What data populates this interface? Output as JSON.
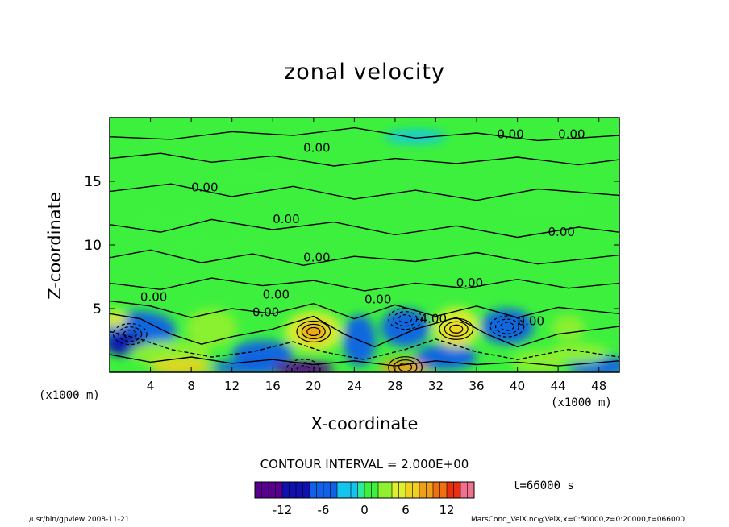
{
  "chart_data": {
    "type": "heatmap",
    "title": "zonal velocity",
    "xlabel": "X-coordinate",
    "ylabel": "Z-coordinate",
    "x_unit_left": "(x1000 m)",
    "x_unit_right": "(x1000 m)",
    "xlim": [
      0,
      50
    ],
    "ylim": [
      0,
      20
    ],
    "x_ticks": [
      "4",
      "8",
      "12",
      "16",
      "20",
      "24",
      "28",
      "32",
      "36",
      "40",
      "44",
      "48"
    ],
    "y_ticks": [
      "5",
      "10",
      "15"
    ],
    "contour_interval": "CONTOUR INTERVAL = 2.000E+00",
    "time": "t=66000 s",
    "colorbar": {
      "min": -16,
      "max": 16,
      "tick_labels": [
        "-12",
        "-6",
        "0",
        "6",
        "12"
      ],
      "tick_values": [
        -12,
        -6,
        0,
        6,
        12
      ]
    },
    "contour_labels": [
      "0.00",
      "0.00",
      "0.00",
      "0.00",
      "0.00",
      "0.00",
      "0.00",
      "0.00",
      "0.00",
      "0.00",
      "0.00",
      "0.00",
      "-4.00",
      "0.00"
    ],
    "extrema": [
      {
        "x": 20,
        "z": 3.2,
        "value": 10,
        "kind": "max"
      },
      {
        "x": 34,
        "z": 3.4,
        "value": 8,
        "kind": "max"
      },
      {
        "x": 29,
        "z": 0.4,
        "value": 12,
        "kind": "max"
      },
      {
        "x": 19,
        "z": 0.2,
        "value": -12,
        "kind": "min"
      },
      {
        "x": 2,
        "z": 3.0,
        "value": -8,
        "kind": "min"
      },
      {
        "x": 39,
        "z": 3.6,
        "value": -4,
        "kind": "min"
      },
      {
        "x": 29,
        "z": 4.2,
        "value": -6,
        "kind": "min"
      }
    ],
    "colors": {
      "background_field": "#3ef03e",
      "negative_strong": "#1010b0",
      "negative": "#12c4ee",
      "positive": "#ecec30",
      "positive_strong": "#f07010"
    }
  },
  "footer": {
    "left": "/usr/bin/gpview  2008-11-21",
    "right": "MarsCond_VelX.nc@VelX,x=0:50000,z=0:20000,t=066000"
  }
}
